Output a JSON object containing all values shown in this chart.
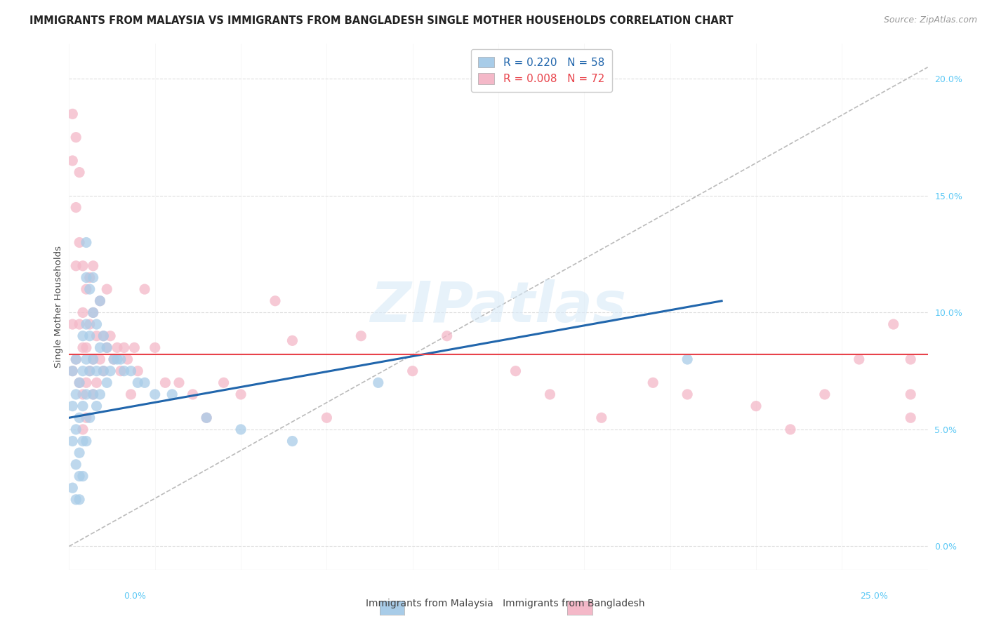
{
  "title": "IMMIGRANTS FROM MALAYSIA VS IMMIGRANTS FROM BANGLADESH SINGLE MOTHER HOUSEHOLDS CORRELATION CHART",
  "source": "Source: ZipAtlas.com",
  "ylabel": "Single Mother Households",
  "xlim": [
    0,
    0.25
  ],
  "ylim": [
    -0.01,
    0.215
  ],
  "yticks": [
    0.0,
    0.05,
    0.1,
    0.15,
    0.2
  ],
  "legend1_label": "R = 0.220   N = 58",
  "legend2_label": "R = 0.008   N = 72",
  "color_malaysia": "#a8cce8",
  "color_bangladesh": "#f4b8c8",
  "color_trend_malaysia": "#2166ac",
  "color_trend_bangladesh": "#e8424a",
  "color_ref_line": "#bbbbbb",
  "malaysia_x": [
    0.001,
    0.001,
    0.001,
    0.001,
    0.002,
    0.002,
    0.002,
    0.002,
    0.002,
    0.003,
    0.003,
    0.003,
    0.003,
    0.003,
    0.004,
    0.004,
    0.004,
    0.004,
    0.004,
    0.005,
    0.005,
    0.005,
    0.005,
    0.005,
    0.005,
    0.006,
    0.006,
    0.006,
    0.006,
    0.007,
    0.007,
    0.007,
    0.007,
    0.008,
    0.008,
    0.008,
    0.009,
    0.009,
    0.009,
    0.01,
    0.01,
    0.011,
    0.011,
    0.012,
    0.013,
    0.014,
    0.015,
    0.016,
    0.018,
    0.02,
    0.022,
    0.025,
    0.03,
    0.04,
    0.05,
    0.065,
    0.09,
    0.18
  ],
  "malaysia_y": [
    0.075,
    0.06,
    0.045,
    0.025,
    0.08,
    0.065,
    0.05,
    0.035,
    0.02,
    0.07,
    0.055,
    0.04,
    0.03,
    0.02,
    0.09,
    0.075,
    0.06,
    0.045,
    0.03,
    0.13,
    0.115,
    0.095,
    0.08,
    0.065,
    0.045,
    0.11,
    0.09,
    0.075,
    0.055,
    0.115,
    0.1,
    0.08,
    0.065,
    0.095,
    0.075,
    0.06,
    0.105,
    0.085,
    0.065,
    0.09,
    0.075,
    0.085,
    0.07,
    0.075,
    0.08,
    0.08,
    0.08,
    0.075,
    0.075,
    0.07,
    0.07,
    0.065,
    0.065,
    0.055,
    0.05,
    0.045,
    0.07,
    0.08
  ],
  "bangladesh_x": [
    0.001,
    0.001,
    0.001,
    0.001,
    0.002,
    0.002,
    0.002,
    0.002,
    0.003,
    0.003,
    0.003,
    0.003,
    0.004,
    0.004,
    0.004,
    0.004,
    0.004,
    0.005,
    0.005,
    0.005,
    0.005,
    0.006,
    0.006,
    0.006,
    0.007,
    0.007,
    0.007,
    0.007,
    0.008,
    0.008,
    0.009,
    0.009,
    0.01,
    0.01,
    0.011,
    0.011,
    0.012,
    0.013,
    0.014,
    0.015,
    0.016,
    0.017,
    0.018,
    0.019,
    0.02,
    0.022,
    0.025,
    0.028,
    0.032,
    0.036,
    0.04,
    0.045,
    0.05,
    0.06,
    0.065,
    0.075,
    0.085,
    0.1,
    0.11,
    0.13,
    0.14,
    0.155,
    0.17,
    0.18,
    0.2,
    0.21,
    0.22,
    0.23,
    0.24,
    0.245,
    0.245,
    0.245
  ],
  "bangladesh_y": [
    0.185,
    0.165,
    0.095,
    0.075,
    0.175,
    0.145,
    0.12,
    0.08,
    0.16,
    0.13,
    0.095,
    0.07,
    0.12,
    0.1,
    0.085,
    0.065,
    0.05,
    0.11,
    0.085,
    0.07,
    0.055,
    0.115,
    0.095,
    0.075,
    0.12,
    0.1,
    0.08,
    0.065,
    0.09,
    0.07,
    0.105,
    0.08,
    0.09,
    0.075,
    0.11,
    0.085,
    0.09,
    0.08,
    0.085,
    0.075,
    0.085,
    0.08,
    0.065,
    0.085,
    0.075,
    0.11,
    0.085,
    0.07,
    0.07,
    0.065,
    0.055,
    0.07,
    0.065,
    0.105,
    0.088,
    0.055,
    0.09,
    0.075,
    0.09,
    0.075,
    0.065,
    0.055,
    0.07,
    0.065,
    0.06,
    0.05,
    0.065,
    0.08,
    0.095,
    0.08,
    0.065,
    0.055
  ],
  "malaysia_trend_x": [
    0.0,
    0.19
  ],
  "malaysia_trend_y": [
    0.055,
    0.105
  ],
  "bangladesh_trend_x": [
    0.0,
    0.25
  ],
  "bangladesh_trend_y": [
    0.082,
    0.082
  ],
  "ref_line_x": [
    0.0,
    0.25
  ],
  "ref_line_y": [
    0.0,
    0.205
  ],
  "background_color": "#ffffff",
  "grid_color": "#dddddd",
  "title_fontsize": 10.5,
  "axis_label_fontsize": 9.5,
  "tick_fontsize": 9,
  "legend_fontsize": 11,
  "source_fontsize": 9,
  "watermark": "ZIPatlas"
}
